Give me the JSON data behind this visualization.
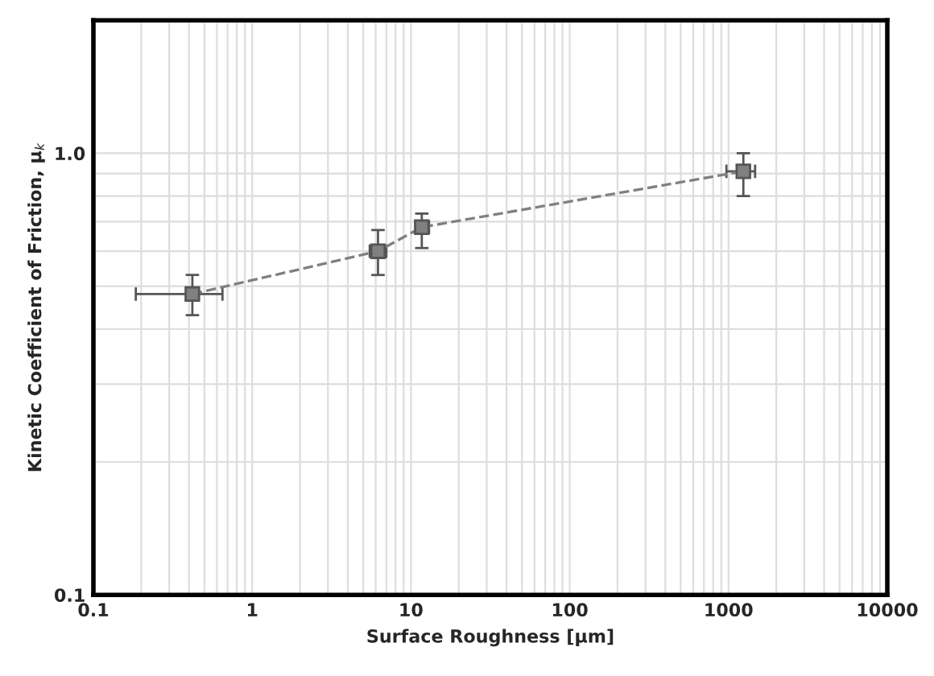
{
  "chart_data": {
    "type": "line",
    "xlabel": "Surface Roughness [μm]",
    "ylabel": "Kinetic Coefficient of Friction, μ$_{k}$",
    "x": [
      0.42,
      6.2,
      11.7,
      1240
    ],
    "series": [
      {
        "color": "#808080",
        "values": [
          0.48,
          0.6,
          0.68,
          0.91
        ],
        "errors": [
          [
            0.43,
            0.53
          ],
          [
            0.53,
            0.67
          ],
          [
            0.61,
            0.73
          ],
          [
            0.8,
            1.0
          ]
        ],
        "xerrors": [
          [
            0.185,
            0.65
          ],
          [
            5.5,
            7.0
          ],
          [
            10.7,
            13
          ],
          [
            970,
            1470
          ]
        ]
      }
    ],
    "log": "xy",
    "xlim": [
      0.1,
      10000
    ],
    "ylim": [
      0.1,
      2
    ],
    "xticks": [
      0.1,
      1,
      10,
      100,
      1000,
      10000
    ],
    "yticks": [
      0.1,
      {
        "value": 1,
        "label": "1.0"
      }
    ],
    "grid": true,
    "marker": "square",
    "line_style": "dashed"
  }
}
